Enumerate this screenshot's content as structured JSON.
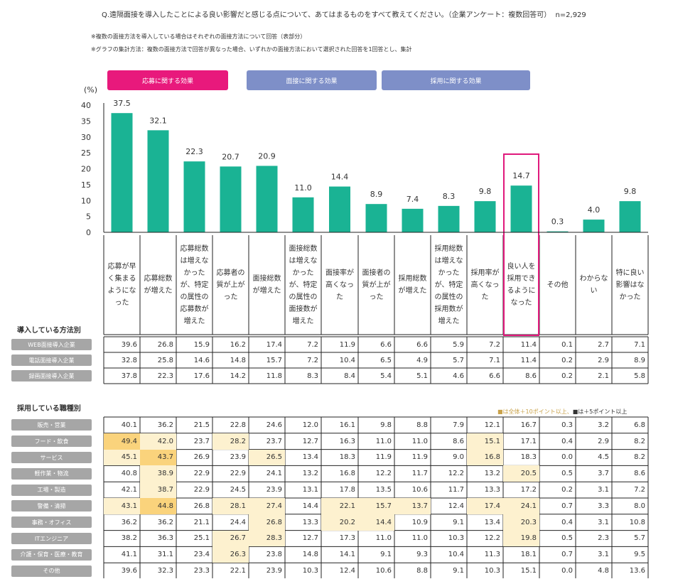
{
  "header": {
    "question": "Q.遠隔面接を導入したことによる良い影響だと感じる点について、あてはまるものをすべて教えてください。（企業アンケート：複数回答可）",
    "n_label": "n=2,929",
    "note1": "※複数の面接方法を導入している場合はそれぞれの面接方法について回答（表部分）",
    "note2": "※グラフの集計方法：複数の面接方法で回答が異なった場合、いずれかの面接方法において選択された回答を1回答とし、集計"
  },
  "category_buttons": [
    {
      "label": "応募に関する効果",
      "color": "#e8197c"
    },
    {
      "label": "面接に関する効果",
      "color": "#7e8fc8"
    },
    {
      "label": "採用に関する効果",
      "color": "#7e8fc8"
    }
  ],
  "colors": {
    "bar": "#1ab394",
    "highlight_border": "#e0197c",
    "strong": "#fad37c",
    "light": "#fdf1cf",
    "grid": "#222222",
    "row_label_bg": "#a6a6a6"
  },
  "chart_data": {
    "type": "bar",
    "ylabel": "(%)",
    "ylim": [
      0,
      40
    ],
    "yticks": [
      "0",
      "5",
      "10",
      "15",
      "20",
      "25",
      "30",
      "35",
      "40"
    ],
    "categories": [
      "応募が早く集まるようになった",
      "応募総数が増えた",
      "応募総数は増えなかったが、特定の属性の応募数が増えた",
      "応募者の質が上がった",
      "面接総数が増えた",
      "面接総数は増えなかったが、特定の属性の面接数が増えた",
      "面接率が高くなった",
      "面接者の質が上がった",
      "採用総数が増えた",
      "採用総数は増えなかったが、特定の属性の採用数が増えた",
      "採用率が高くなった",
      "良い人を採用できるようになった",
      "その他",
      "わからない",
      "特に良い影響はなかった"
    ],
    "values": [
      37.5,
      32.1,
      22.3,
      20.7,
      20.9,
      11.0,
      14.4,
      8.9,
      7.4,
      8.3,
      9.8,
      14.7,
      0.3,
      4.0,
      9.8
    ],
    "value_labels": [
      "37.5",
      "32.1",
      "22.3",
      "20.7",
      "20.9",
      "11.0",
      "14.4",
      "8.9",
      "7.4",
      "8.3",
      "9.8",
      "14.7",
      "0.3",
      "4.0",
      "9.8"
    ],
    "highlight_index": 11
  },
  "method_table": {
    "title": "導入している方法別",
    "rows": [
      {
        "label": "WEB面接導入企業",
        "values": [
          "39.6",
          "26.8",
          "15.9",
          "16.2",
          "17.4",
          "7.2",
          "11.9",
          "6.6",
          "6.6",
          "5.9",
          "7.2",
          "11.4",
          "0.1",
          "2.7",
          "7.1"
        ]
      },
      {
        "label": "電話面接導入企業",
        "values": [
          "32.8",
          "25.8",
          "14.6",
          "14.8",
          "15.7",
          "7.2",
          "10.4",
          "6.5",
          "4.9",
          "5.7",
          "7.1",
          "11.4",
          "0.2",
          "2.9",
          "8.9"
        ]
      },
      {
        "label": "録画面接導入企業",
        "values": [
          "37.8",
          "22.3",
          "17.6",
          "14.2",
          "11.8",
          "8.3",
          "8.4",
          "5.4",
          "5.1",
          "4.6",
          "6.6",
          "8.6",
          "0.2",
          "2.1",
          "5.8"
        ]
      }
    ]
  },
  "job_table": {
    "title": "採用している職種別",
    "legend_strong": "■は全体＋10ポイント以上、",
    "legend_light": "■は＋5ポイント以上",
    "rows": [
      {
        "label": "販売・営業",
        "values": [
          "40.1",
          "36.2",
          "21.5",
          "22.8",
          "24.6",
          "12.0",
          "16.1",
          "9.8",
          "8.8",
          "7.9",
          "12.1",
          "16.7",
          "0.3",
          "3.2",
          "6.8"
        ],
        "hl": [
          0,
          0,
          0,
          0,
          0,
          0,
          0,
          0,
          0,
          0,
          0,
          0,
          0,
          0,
          0
        ]
      },
      {
        "label": "フード・飲食",
        "values": [
          "49.4",
          "42.0",
          "23.7",
          "28.2",
          "23.7",
          "12.7",
          "16.3",
          "11.0",
          "11.0",
          "8.6",
          "15.1",
          "17.1",
          "0.4",
          "2.9",
          "8.2"
        ],
        "hl": [
          2,
          1,
          0,
          1,
          0,
          0,
          0,
          0,
          0,
          0,
          1,
          0,
          0,
          0,
          0
        ]
      },
      {
        "label": "サービス",
        "values": [
          "45.1",
          "43.7",
          "26.9",
          "23.9",
          "26.5",
          "13.4",
          "18.3",
          "11.9",
          "11.9",
          "9.0",
          "16.8",
          "18.3",
          "0.0",
          "4.5",
          "8.2"
        ],
        "hl": [
          1,
          2,
          0,
          0,
          1,
          0,
          0,
          0,
          0,
          0,
          1,
          0,
          0,
          0,
          0
        ]
      },
      {
        "label": "軽作業・物流",
        "values": [
          "40.8",
          "38.9",
          "22.9",
          "22.9",
          "24.1",
          "13.2",
          "16.8",
          "12.2",
          "11.7",
          "12.2",
          "13.2",
          "20.5",
          "0.5",
          "3.7",
          "8.6"
        ],
        "hl": [
          0,
          1,
          0,
          0,
          0,
          0,
          0,
          0,
          0,
          0,
          0,
          1,
          0,
          0,
          0
        ]
      },
      {
        "label": "工場・製造",
        "values": [
          "42.1",
          "38.7",
          "22.9",
          "24.5",
          "23.9",
          "13.1",
          "17.8",
          "13.5",
          "10.6",
          "11.7",
          "13.3",
          "17.2",
          "0.2",
          "3.1",
          "7.2"
        ],
        "hl": [
          0,
          1,
          0,
          0,
          0,
          0,
          0,
          0,
          0,
          0,
          0,
          0,
          0,
          0,
          0
        ]
      },
      {
        "label": "警備・清掃",
        "values": [
          "43.1",
          "44.8",
          "26.8",
          "28.1",
          "27.4",
          "14.4",
          "22.1",
          "15.7",
          "13.7",
          "12.4",
          "17.4",
          "24.1",
          "0.7",
          "3.3",
          "8.0"
        ],
        "hl": [
          1,
          2,
          0,
          1,
          1,
          0,
          1,
          1,
          1,
          0,
          1,
          1,
          0,
          0,
          0
        ]
      },
      {
        "label": "事務・オフィス",
        "values": [
          "36.2",
          "36.2",
          "21.1",
          "24.4",
          "26.8",
          "13.3",
          "20.2",
          "14.4",
          "10.9",
          "9.1",
          "13.4",
          "20.3",
          "0.4",
          "3.1",
          "10.8"
        ],
        "hl": [
          0,
          0,
          0,
          0,
          1,
          0,
          1,
          1,
          0,
          0,
          0,
          1,
          0,
          0,
          0
        ]
      },
      {
        "label": "ITエンジニア",
        "values": [
          "38.2",
          "36.3",
          "25.1",
          "26.7",
          "28.3",
          "12.7",
          "17.3",
          "11.0",
          "11.0",
          "10.3",
          "12.2",
          "19.8",
          "0.5",
          "2.3",
          "5.7"
        ],
        "hl": [
          0,
          0,
          0,
          1,
          1,
          0,
          0,
          0,
          0,
          0,
          0,
          1,
          0,
          0,
          0
        ]
      },
      {
        "label": "介護・保育・医療・教育",
        "values": [
          "41.1",
          "31.1",
          "23.4",
          "26.3",
          "23.8",
          "14.8",
          "14.1",
          "9.1",
          "9.3",
          "10.4",
          "11.3",
          "18.1",
          "0.7",
          "3.1",
          "9.5"
        ],
        "hl": [
          0,
          0,
          0,
          1,
          0,
          0,
          0,
          0,
          0,
          0,
          0,
          0,
          0,
          0,
          0
        ]
      },
      {
        "label": "その他",
        "values": [
          "39.6",
          "32.3",
          "23.3",
          "22.1",
          "23.9",
          "10.3",
          "12.4",
          "10.6",
          "8.8",
          "9.1",
          "10.3",
          "15.1",
          "0.0",
          "4.8",
          "13.6"
        ],
        "hl": [
          0,
          0,
          0,
          0,
          0,
          0,
          0,
          0,
          0,
          0,
          0,
          0,
          0,
          0,
          0
        ]
      }
    ]
  }
}
